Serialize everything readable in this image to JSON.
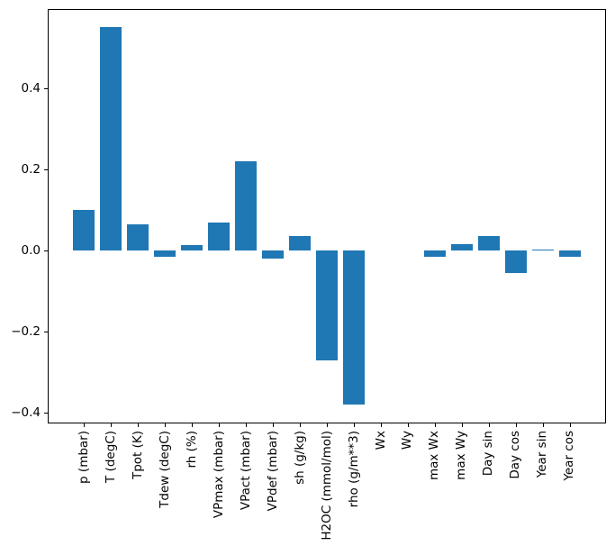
{
  "chart_data": {
    "type": "bar",
    "title": "",
    "xlabel": "",
    "ylabel": "",
    "categories": [
      "p (mbar)",
      "T (degC)",
      "Tpot (K)",
      "Tdew (degC)",
      "rh (%)",
      "VPmax (mbar)",
      "VPact (mbar)",
      "VPdef (mbar)",
      "sh (g/kg)",
      "H2OC (mmol/mol)",
      "rho (g/m**3)",
      "Wx",
      "Wy",
      "max Wx",
      "max Wy",
      "Day sin",
      "Day cos",
      "Year sin",
      "Year cos"
    ],
    "values": [
      0.1,
      0.551,
      0.066,
      -0.015,
      0.013,
      0.07,
      0.22,
      -0.02,
      0.036,
      -0.271,
      -0.38,
      0.0,
      0.0,
      -0.016,
      0.016,
      0.036,
      -0.055,
      0.003,
      -0.014
    ],
    "ylim": [
      -0.426,
      0.596
    ],
    "yticks": [
      {
        "value": 0.4,
        "label": "0.4"
      },
      {
        "value": 0.2,
        "label": "0.2"
      },
      {
        "value": 0.0,
        "label": "0.0"
      },
      {
        "value": -0.2,
        "label": "−0.2"
      },
      {
        "value": -0.4,
        "label": "−0.4"
      }
    ],
    "bar_color": "#1f77b4",
    "axis_color": "#000000",
    "background_color": "#ffffff",
    "grid": false,
    "legend": null,
    "x_tick_rotation_deg": 90
  }
}
